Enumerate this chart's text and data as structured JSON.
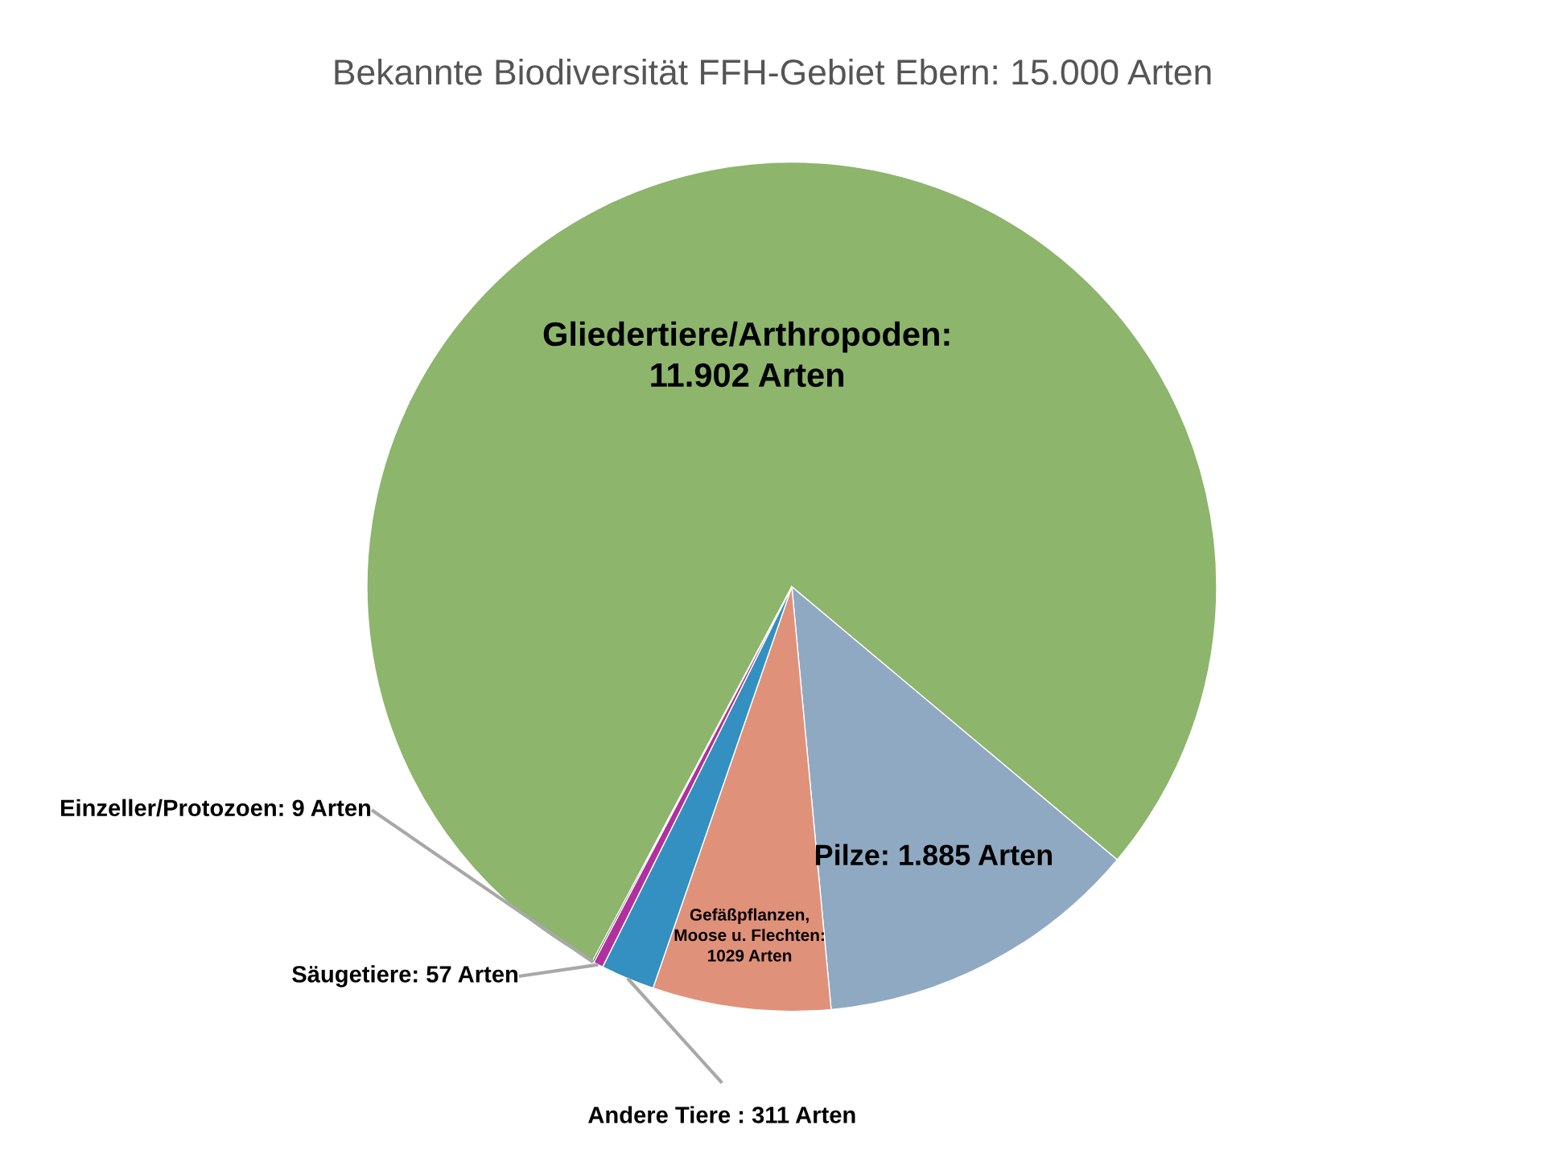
{
  "chart_data": {
    "type": "pie",
    "title": "Bekannte Biodiversität FFH-Gebiet Ebern: 15.000 Arten",
    "categories": [
      "Gliedertiere/Arthropoden:\n11.902 Arten",
      "Pilze: 1.885 Arten",
      "Gefäßpflanzen,\nMoose u. Flechten:\n1029 Arten",
      "Andere Tiere : 311 Arten",
      "Säugetiere: 57 Arten",
      "Einzeller/Protozoen: 9 Arten"
    ],
    "values": [
      11902,
      1885,
      1029,
      311,
      57,
      9
    ],
    "colors": [
      "#8db56c",
      "#8fa9c2",
      "#e0917a",
      "#3390c0",
      "#b0309f",
      "#111111"
    ]
  }
}
